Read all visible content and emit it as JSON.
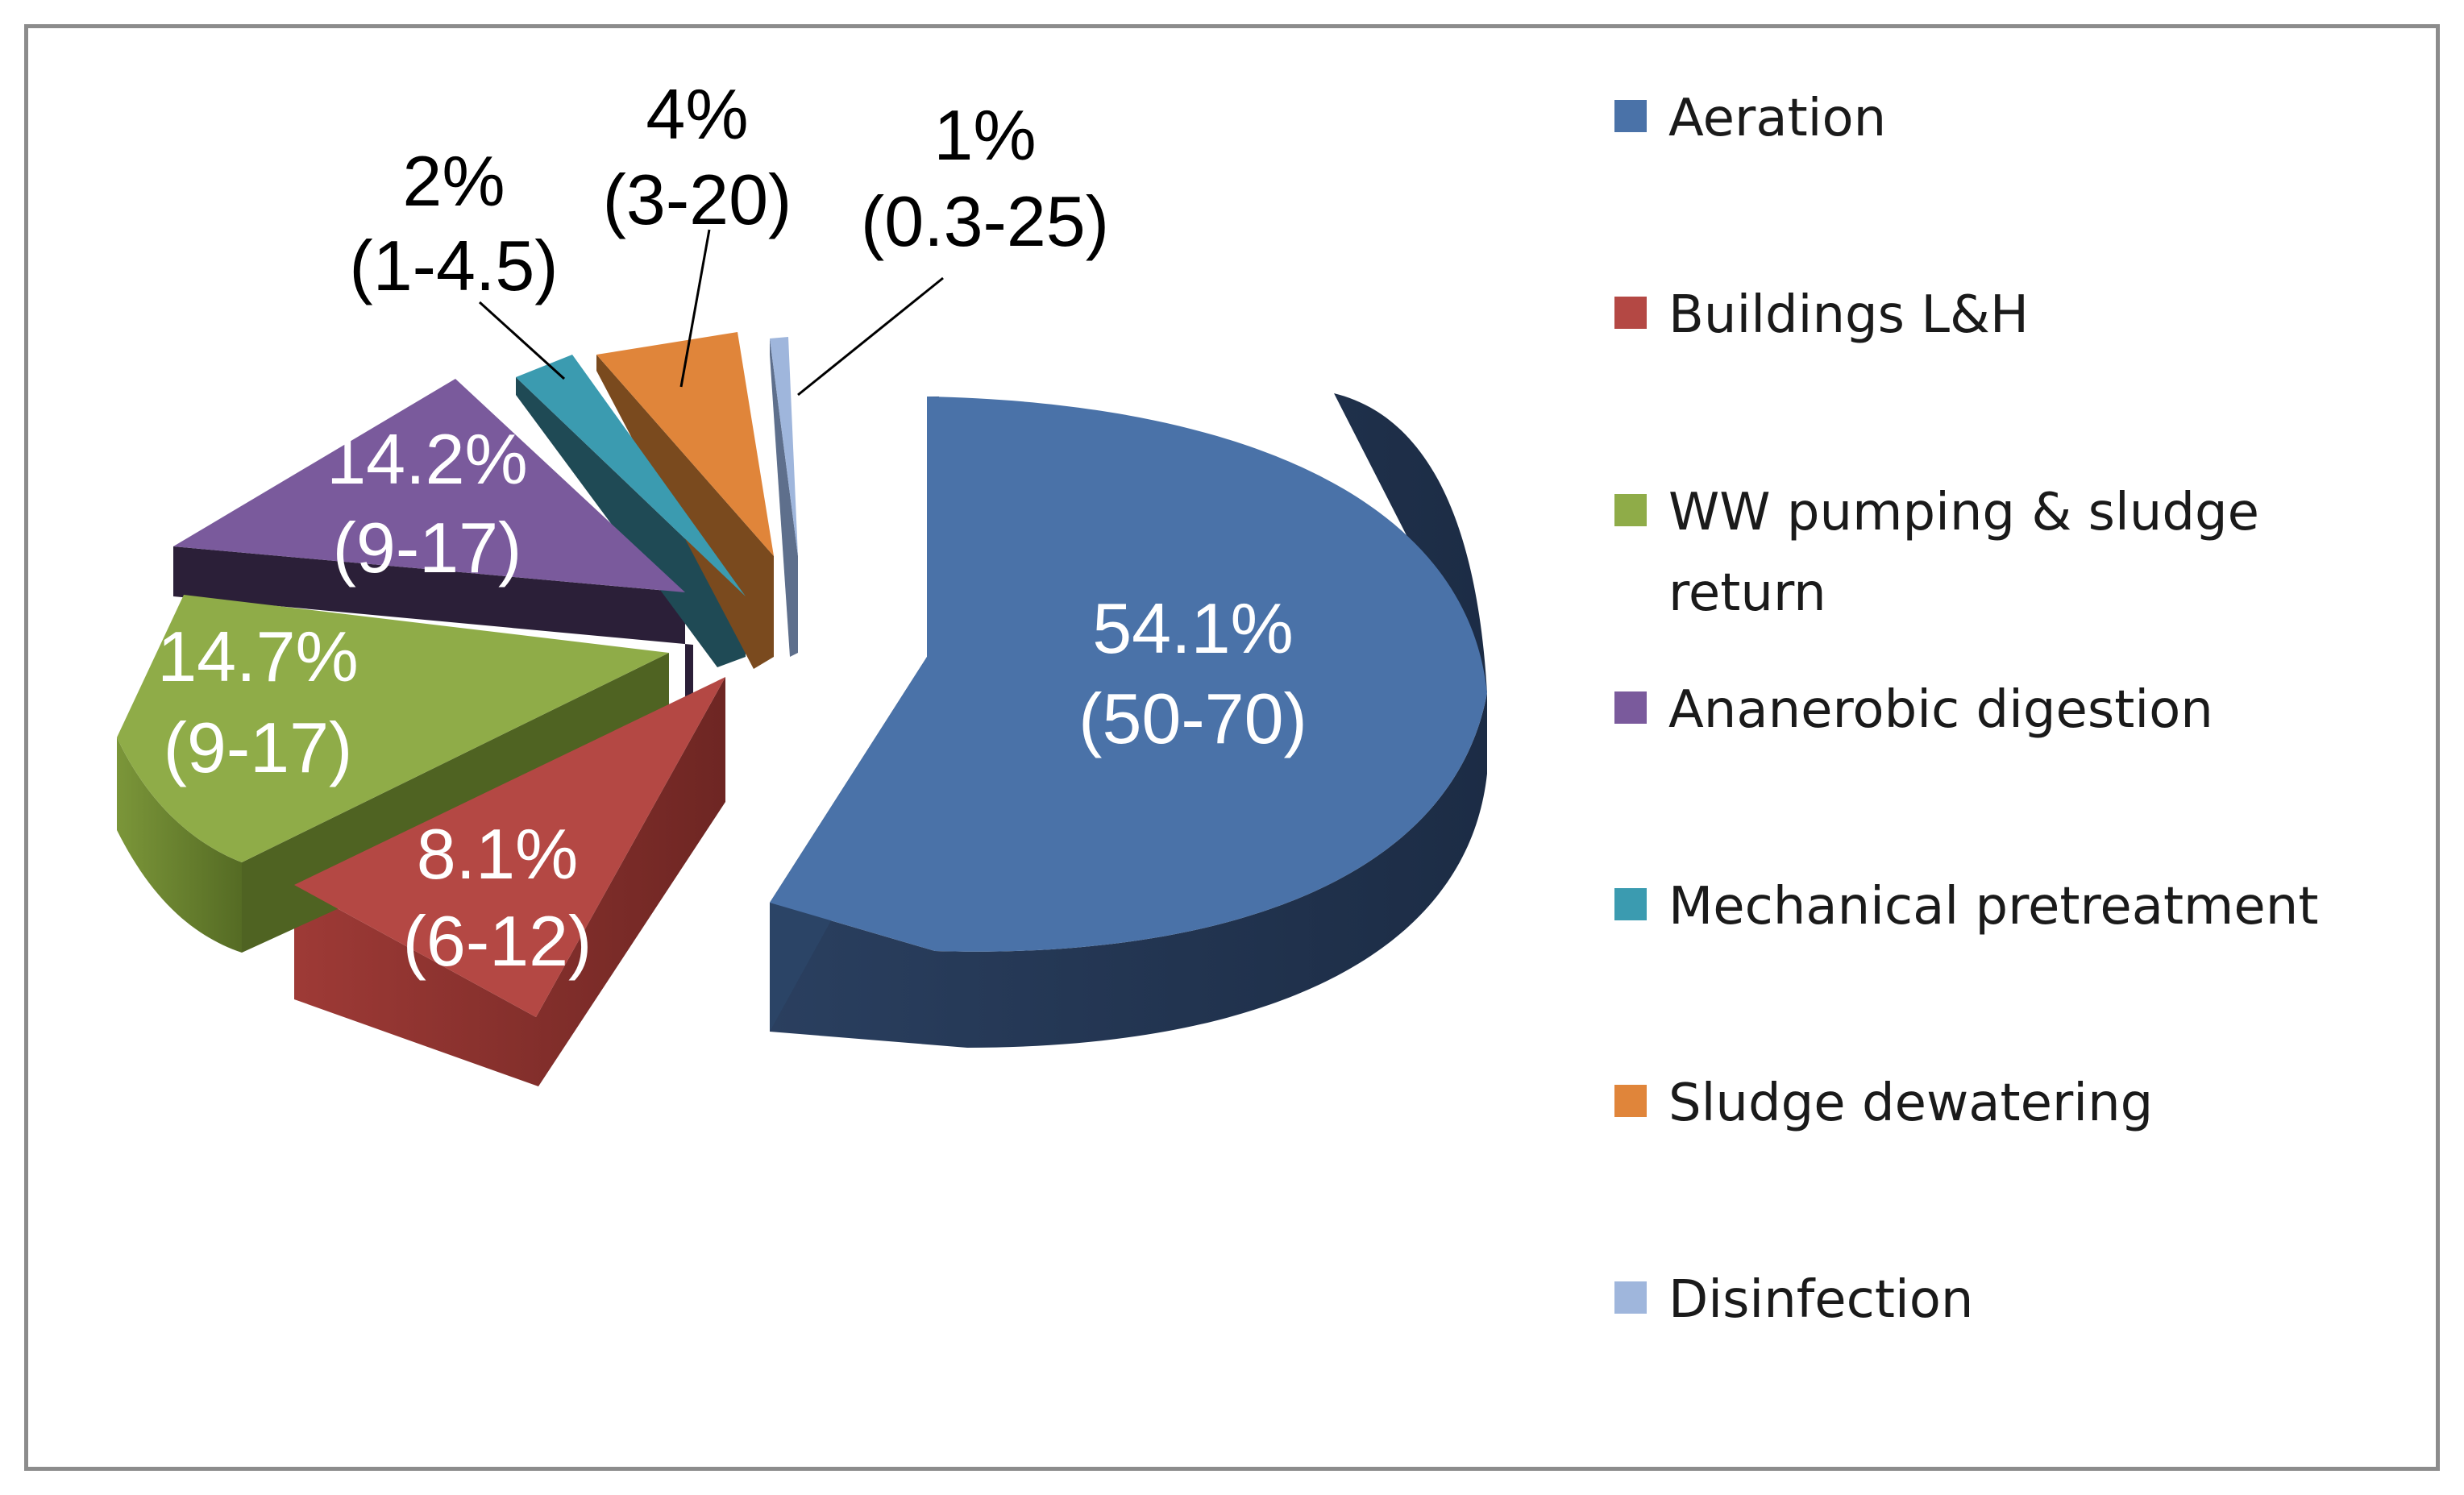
{
  "chart_data": {
    "type": "pie",
    "title": "",
    "legend_position": "right",
    "slices": [
      {
        "name": "Aeration",
        "value": 54.1,
        "value_label": "54.1%",
        "range_label": "(50-70)",
        "color": "#4a72a8"
      },
      {
        "name": "Buildings L&H",
        "value": 8.1,
        "value_label": "8.1%",
        "range_label": "(6-12)",
        "color": "#b44844"
      },
      {
        "name": "WW pumping & sludge",
        "name_line2": "return",
        "value": 14.7,
        "value_label": "14.7%",
        "range_label": "(9-17)",
        "color": "#8fac48"
      },
      {
        "name": "Ananerobic digestion",
        "value": 14.2,
        "value_label": "14.2%",
        "range_label": "(9-17)",
        "color": "#7a5a9c"
      },
      {
        "name": "Mechanical pretreatment",
        "value": 2,
        "value_label": "2%",
        "range_label": "(1-4.5)",
        "color": "#3b9bb0"
      },
      {
        "name": "Sludge dewatering",
        "value": 4,
        "value_label": "4%",
        "range_label": "(3-20)",
        "color": "#e0853a"
      },
      {
        "name": "Disinfection",
        "value": 1,
        "value_label": "1%",
        "range_label": "(0.3-25)",
        "color": "#9fb6dc"
      }
    ]
  }
}
